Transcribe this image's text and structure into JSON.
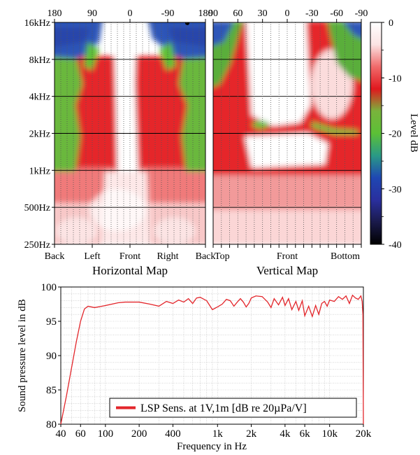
{
  "colors": {
    "colormap": [
      {
        "level": 0,
        "color": "#ffffff"
      },
      {
        "level": -4,
        "color": "#fbe3e3"
      },
      {
        "level": -8,
        "color": "#f06a6a"
      },
      {
        "level": -12,
        "color": "#e0181e"
      },
      {
        "level": -16,
        "color": "#79b33c"
      },
      {
        "level": -20,
        "color": "#5cc036"
      },
      {
        "level": -24,
        "color": "#2a9a86"
      },
      {
        "level": -28,
        "color": "#1f47b3"
      },
      {
        "level": -32,
        "color": "#2a2f9e"
      },
      {
        "level": -36,
        "color": "#1a1a4a"
      },
      {
        "level": -40,
        "color": "#000000"
      }
    ],
    "line": "#e3262b",
    "grid_dot": "#555555"
  },
  "chart_data": [
    {
      "type": "heatmap",
      "xlabel": "Horizontal Map",
      "top_ticks": [
        "180",
        "90",
        "0",
        "-90",
        "180"
      ],
      "bottom_ticks": [
        "Back",
        "Left",
        "Front",
        "Right",
        "Back"
      ],
      "x_angles": [
        180,
        90,
        0,
        -90,
        -180
      ],
      "y_ticks": [
        "16kHz",
        "8kHz",
        "4kHz",
        "2kHz",
        "1kHz",
        "500Hz",
        "250Hz"
      ],
      "y_values_hz": [
        16000,
        8000,
        4000,
        2000,
        1000,
        500,
        250
      ],
      "grid_step_deg": 15
    },
    {
      "type": "heatmap",
      "xlabel": "Vertical Map",
      "top_ticks": [
        "90",
        "60",
        "30",
        "0",
        "-30",
        "-60",
        "-90"
      ],
      "bottom_ticks": [
        "Top",
        "Front",
        "Bottom"
      ],
      "x_angles": [
        90,
        60,
        30,
        0,
        -30,
        -60,
        -90
      ],
      "grid_step_deg": 10
    },
    {
      "type": "colorbar",
      "label": "Level dB",
      "ticks": [
        "0",
        "-10",
        "-20",
        "-30",
        "-40"
      ],
      "range": [
        -40,
        0
      ]
    },
    {
      "type": "line",
      "xlabel": "Frequency in Hz",
      "ylabel": "Sound pressure level in dB",
      "x_scale": "log",
      "xlim": [
        40,
        20000
      ],
      "ylim": [
        80,
        100
      ],
      "x_ticks": [
        "40",
        "60",
        "100",
        "200",
        "400",
        "1k",
        "2k",
        "4k",
        "6k",
        "10k",
        "20k"
      ],
      "x_tick_values": [
        40,
        60,
        100,
        200,
        400,
        1000,
        2000,
        4000,
        6000,
        10000,
        20000
      ],
      "y_ticks": [
        "80",
        "85",
        "90",
        "95",
        "100"
      ],
      "legend_position": "lower-right",
      "grid": true,
      "series": [
        {
          "name": "LSP Sens. at 1V,1m [dB re 20µPa/V]",
          "points": [
            [
              40,
              80.0
            ],
            [
              45,
              84.2
            ],
            [
              50,
              88.3
            ],
            [
              55,
              92.0
            ],
            [
              60,
              95.0
            ],
            [
              65,
              96.8
            ],
            [
              70,
              97.2
            ],
            [
              80,
              97.0
            ],
            [
              100,
              97.3
            ],
            [
              130,
              97.7
            ],
            [
              150,
              97.8
            ],
            [
              200,
              97.8
            ],
            [
              250,
              97.5
            ],
            [
              300,
              97.2
            ],
            [
              350,
              97.9
            ],
            [
              400,
              97.6
            ],
            [
              450,
              98.1
            ],
            [
              500,
              97.8
            ],
            [
              550,
              98.3
            ],
            [
              600,
              97.6
            ],
            [
              650,
              98.4
            ],
            [
              700,
              98.5
            ],
            [
              800,
              98.0
            ],
            [
              900,
              96.7
            ],
            [
              1000,
              97.1
            ],
            [
              1100,
              97.5
            ],
            [
              1200,
              98.2
            ],
            [
              1300,
              98.0
            ],
            [
              1400,
              97.2
            ],
            [
              1500,
              97.8
            ],
            [
              1600,
              98.3
            ],
            [
              1700,
              97.8
            ],
            [
              1800,
              97.1
            ],
            [
              1900,
              97.6
            ],
            [
              2000,
              98.4
            ],
            [
              2200,
              98.7
            ],
            [
              2500,
              98.6
            ],
            [
              2800,
              97.8
            ],
            [
              3000,
              97.0
            ],
            [
              3200,
              98.3
            ],
            [
              3500,
              97.4
            ],
            [
              3800,
              98.5
            ],
            [
              4000,
              97.3
            ],
            [
              4300,
              98.3
            ],
            [
              4600,
              96.7
            ],
            [
              5000,
              97.9
            ],
            [
              5300,
              96.6
            ],
            [
              5700,
              98.0
            ],
            [
              6000,
              95.8
            ],
            [
              6500,
              97.2
            ],
            [
              7000,
              95.7
            ],
            [
              7500,
              97.3
            ],
            [
              8000,
              96.0
            ],
            [
              8500,
              97.6
            ],
            [
              9000,
              97.9
            ],
            [
              9500,
              97.2
            ],
            [
              10000,
              98.1
            ],
            [
              11000,
              97.9
            ],
            [
              12000,
              98.6
            ],
            [
              13000,
              98.2
            ],
            [
              14000,
              98.7
            ],
            [
              15000,
              97.6
            ],
            [
              16000,
              98.8
            ],
            [
              17000,
              98.4
            ],
            [
              18000,
              98.2
            ],
            [
              19000,
              98.7
            ],
            [
              19500,
              97.9
            ],
            [
              19800,
              96.0
            ],
            [
              20000,
              80.0
            ]
          ]
        }
      ]
    }
  ]
}
